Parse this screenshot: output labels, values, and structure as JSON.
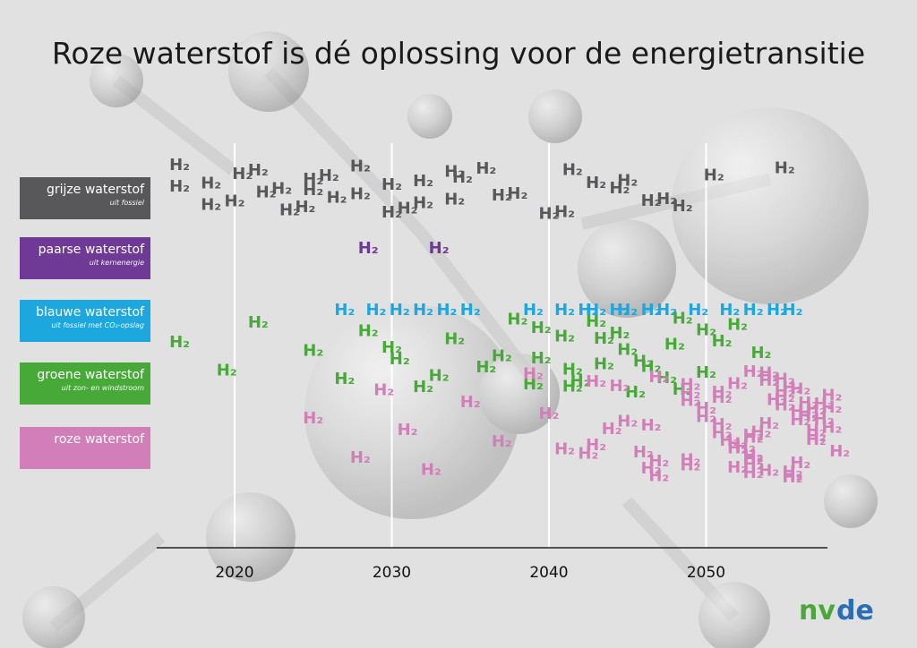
{
  "title": "Roze waterstof is dé oplossing voor de energietransitie",
  "categories": [
    {
      "name": "grijze waterstof",
      "sub": "uit fossiel",
      "color": "#58585a"
    },
    {
      "name": "paarse waterstof",
      "sub": "uit kernenergie",
      "color": "#6e3a95"
    },
    {
      "name": "blauwe waterstof",
      "sub": "uit fossiel met CO₂-opslag",
      "color": "#1ca7df"
    },
    {
      "name": "groene waterstof",
      "sub": "uit zon- en windstroom",
      "color": "#47a938"
    },
    {
      "name": "roze waterstof",
      "sub": "",
      "color": "#d27eb8"
    }
  ],
  "symbol": "H₂",
  "chart_data": {
    "type": "scatter",
    "xlabel": "",
    "ylabel": "",
    "xlim": [
      2015,
      2058
    ],
    "xticks": [
      "2020",
      "2030",
      "2040",
      "2050"
    ],
    "grid": true,
    "series": [
      {
        "name": "grijze waterstof",
        "color": "#58585a",
        "x": [
          2016.5,
          2018.5,
          2020,
          2021.5,
          2023,
          2024.5,
          2026,
          2028,
          2030,
          2032,
          2034,
          2036,
          2016.5,
          2018.5,
          2020.5,
          2022,
          2023.5,
          2025,
          2026.5,
          2028,
          2030,
          2032,
          2034,
          2025,
          2031,
          2034.5,
          2037,
          2040,
          2043,
          2046.5,
          2041.5,
          2044.5,
          2048.5,
          2050.5,
          2038,
          2041,
          2045,
          2047.5,
          2055
        ]
      },
      {
        "name": "paarse waterstof",
        "color": "#6e3a95",
        "x": [
          2028.5,
          2033
        ]
      },
      {
        "name": "blauwe waterstof",
        "color": "#1ca7df",
        "x": [
          2027,
          2029,
          2030.5,
          2032,
          2033.5,
          2035,
          2039,
          2041,
          2043,
          2045,
          2047.5,
          2049.5,
          2051.5,
          2042.5,
          2044.5,
          2046.5,
          2053,
          2054.5,
          2055.5
        ]
      },
      {
        "name": "groene waterstof",
        "color": "#47a938",
        "x": [
          2016.5,
          2019.5,
          2021.5,
          2025,
          2027,
          2028.5,
          2030.5,
          2032,
          2034,
          2036,
          2038,
          2030,
          2033,
          2039.5,
          2037,
          2039,
          2041,
          2043.5,
          2045.5,
          2048,
          2050,
          2052,
          2053.5,
          2042,
          2044.5,
          2046,
          2048.5,
          2051,
          2041.5,
          2043,
          2045,
          2047.5,
          2050,
          2039.5,
          2041.5,
          2043.5,
          2046.5,
          2048.5
        ]
      },
      {
        "name": "roze waterstof",
        "color": "#d27eb8",
        "x": [
          2025,
          2028,
          2029.5,
          2031,
          2032.5,
          2035,
          2037,
          2039,
          2040,
          2042.5,
          2044.5,
          2046.5,
          2049,
          2051,
          2053,
          2055.5,
          2057,
          2041,
          2043,
          2045,
          2047,
          2049,
          2051,
          2053,
          2055,
          2043,
          2047,
          2050,
          2053,
          2056,
          2044,
          2046.5,
          2049,
          2051.5,
          2054,
          2056.5,
          2046,
          2049,
          2051,
          2053,
          2055,
          2057,
          2047,
          2050,
          2052,
          2054,
          2056,
          2049,
          2051,
          2053.5,
          2055.5,
          2057.5,
          2052,
          2054,
          2056.5,
          2053,
          2055.5,
          2058,
          2052,
          2054.5,
          2057,
          2053,
          2056,
          2058.5,
          2052,
          2054,
          2056,
          2058,
          2053,
          2055.5,
          2058,
          2052.5,
          2055,
          2057.5,
          2053,
          2055,
          2057,
          2054,
          2056.5
        ]
      }
    ]
  }
}
